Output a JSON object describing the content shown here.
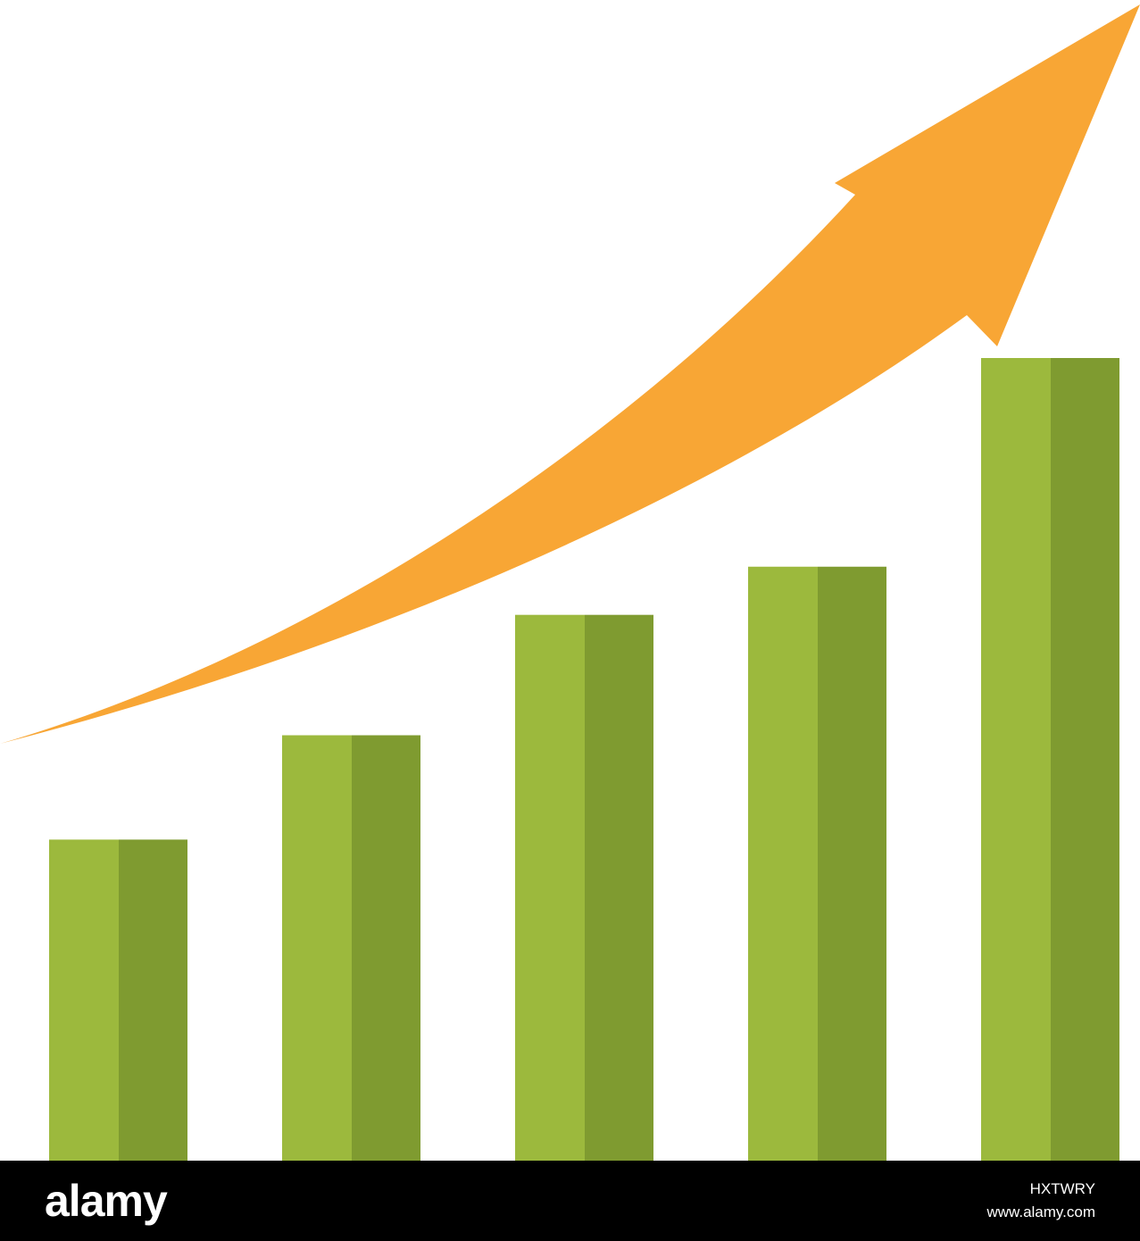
{
  "chart_data": {
    "type": "bar",
    "title": "",
    "xlabel": "",
    "ylabel": "",
    "categories": [
      "",
      "",
      "",
      "",
      ""
    ],
    "values": [
      40,
      53,
      68,
      74,
      100
    ],
    "ylim": [
      0,
      100
    ],
    "grid": false,
    "axes_visible": false,
    "trend_arrow": "upward-curved",
    "colors": {
      "bar_light": "#9cb93d",
      "bar_dark": "#7f9b30",
      "arrow": "#f8a635"
    }
  },
  "footer": {
    "logo": "alamy",
    "image_id": "HXTWRY",
    "site": "www.alamy.com",
    "background": "#000000"
  }
}
